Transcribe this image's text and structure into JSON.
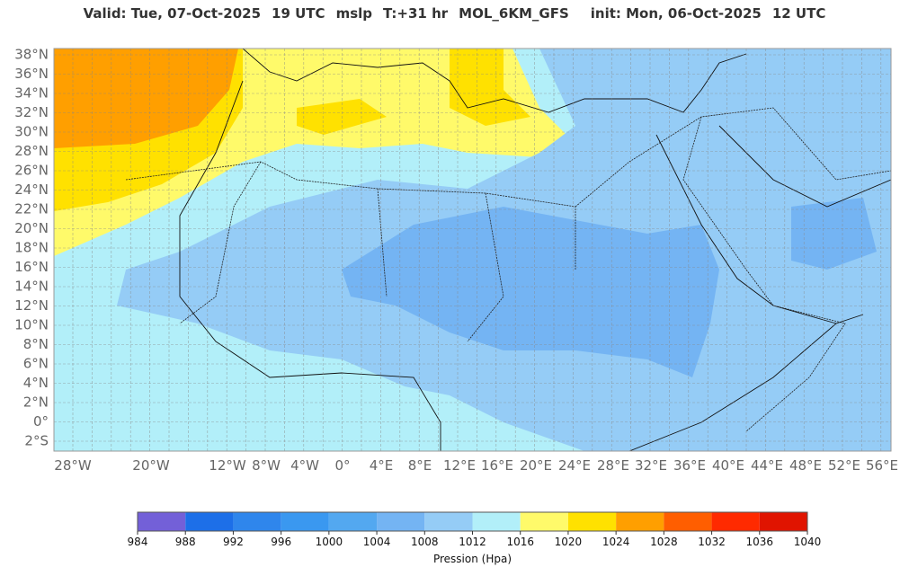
{
  "title": {
    "valid": "Valid: Tue, 07-Oct-2025",
    "valid_time": "19 UTC",
    "field": "mslp",
    "step": "T:+31 hr",
    "model": "MOL_6KM_GFS",
    "init": "init: Mon, 06-Oct-2025",
    "init_time": "12 UTC"
  },
  "map": {
    "lat_labels": [
      "38°N",
      "36°N",
      "34°N",
      "32°N",
      "30°N",
      "28°N",
      "26°N",
      "24°N",
      "22°N",
      "20°N",
      "18°N",
      "16°N",
      "14°N",
      "12°N",
      "10°N",
      "8°N",
      "6°N",
      "4°N",
      "2°N",
      "0°",
      "2°S"
    ],
    "lon_labels": [
      "28°W",
      "20°W",
      "12°W",
      "8°W",
      "4°W",
      "0°",
      "4°E",
      "8°E",
      "12°E",
      "16°E",
      "20°E",
      "24°E",
      "28°E",
      "32°E",
      "36°E",
      "40°E",
      "44°E",
      "48°E",
      "52°E",
      "56°E"
    ]
  },
  "colorbar": {
    "levels": [
      984,
      988,
      992,
      996,
      1000,
      1004,
      1008,
      1012,
      1016,
      1020,
      1024,
      1028,
      1032,
      1036,
      1040
    ],
    "colors": [
      "#7360d8",
      "#1d6fe8",
      "#2f86ec",
      "#3a98f0",
      "#53a8f0",
      "#74b4f3",
      "#95ccf6",
      "#b2eff9",
      "#fffa6a",
      "#ffe100",
      "#ff9f00",
      "#ff5e00",
      "#ff2a00",
      "#e01400"
    ],
    "label": "Pression (Hpa)"
  }
}
